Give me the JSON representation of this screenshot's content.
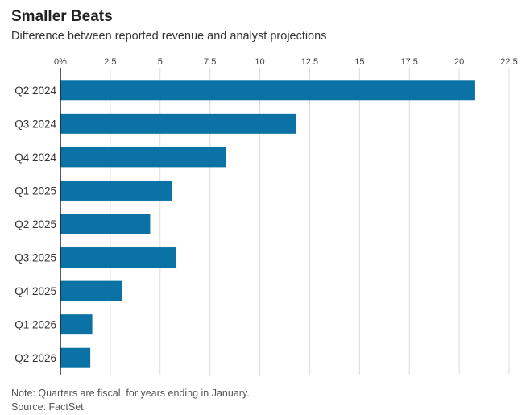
{
  "header": {
    "title": "Smaller Beats",
    "subtitle": "Difference between reported revenue and analyst projections"
  },
  "footer": {
    "note": "Note: Quarters are fiscal, for years ending in January.",
    "source": "Source: FactSet"
  },
  "colors": {
    "bar": "#0a72a5",
    "grid": "#dcdcdc",
    "axis": "#222222"
  },
  "chart_data": {
    "type": "bar",
    "orientation": "horizontal",
    "categories": [
      "Q2 2024",
      "Q3 2024",
      "Q4 2024",
      "Q1 2025",
      "Q2 2025",
      "Q3 2025",
      "Q4 2025",
      "Q1 2026",
      "Q2 2026"
    ],
    "values": [
      20.8,
      11.8,
      8.3,
      5.6,
      4.5,
      5.8,
      3.1,
      1.6,
      1.5
    ],
    "xlim": [
      0,
      22.5
    ],
    "xticks": [
      0,
      2.5,
      5,
      7.5,
      10,
      12.5,
      15,
      17.5,
      20,
      22.5
    ],
    "xtick_labels": [
      "0%",
      "2.5",
      "5",
      "7.5",
      "10",
      "12.5",
      "15",
      "17.5",
      "20",
      "22.5"
    ],
    "xaxis_position": "top",
    "grid": true
  }
}
